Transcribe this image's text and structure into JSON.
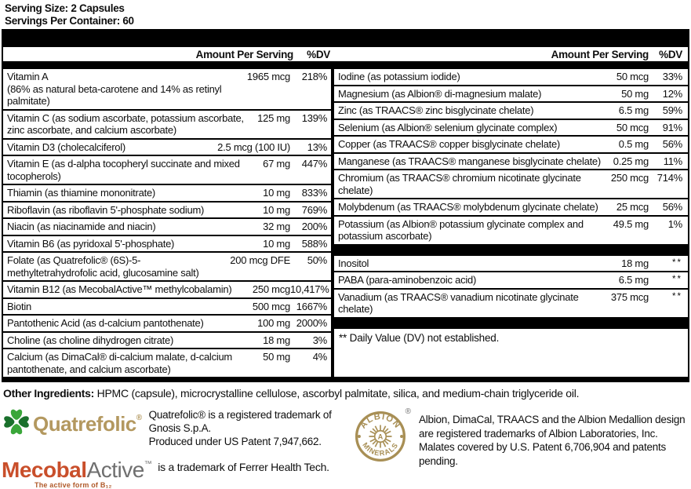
{
  "header": {
    "serving_size": "Serving Size: 2 Capsules",
    "servings_per_container": "Servings Per Container: 60"
  },
  "table": {
    "col_headers": {
      "amount": "Amount Per Serving",
      "dv": "%DV"
    },
    "left_rows": [
      {
        "name": "Vitamin A",
        "sub": "(86% as natural beta-carotene and 14% as retinyl palmitate)",
        "amount": "1965 mcg",
        "dv": "218%"
      },
      {
        "name": "Vitamin C (as sodium ascorbate, potassium ascorbate, zinc ascorbate, and calcium ascorbate)",
        "amount": "125 mg",
        "dv": "139%"
      },
      {
        "name": "Vitamin D3 (cholecalciferol)",
        "amount": "2.5 mcg (100 IU)",
        "dv": "13%"
      },
      {
        "name": "Vitamin E (as d-alpha tocopheryl succinate and mixed tocopherols)",
        "amount": "67 mg",
        "dv": "447%"
      },
      {
        "name": "Thiamin (as thiamine mononitrate)",
        "amount": "10 mg",
        "dv": "833%"
      },
      {
        "name": "Riboflavin (as riboflavin 5'-phosphate sodium)",
        "amount": "10 mg",
        "dv": "769%"
      },
      {
        "name": "Niacin (as niacinamide and niacin)",
        "amount": "32 mg",
        "dv": "200%"
      },
      {
        "name": "Vitamin B6 (as pyridoxal 5'-phosphate)",
        "amount": "10 mg",
        "dv": "588%"
      },
      {
        "name": "Folate (as Quatrefolic® (6S)-5-methyltetrahydrofolic acid, glucosamine salt)",
        "amount": "200 mcg DFE",
        "dv": "50%"
      },
      {
        "name": "Vitamin B12 (as MecobalActive™ methylcobalamin)",
        "amount": "250 mcg",
        "dv": "10,417%"
      },
      {
        "name": "Biotin",
        "amount": "500 mcg",
        "dv": "1667%"
      },
      {
        "name": "Pantothenic Acid (as d-calcium pantothenate)",
        "amount": "100 mg",
        "dv": "2000%"
      },
      {
        "name": "Choline (as choline dihydrogen citrate)",
        "amount": "18 mg",
        "dv": "3%"
      },
      {
        "name": "Calcium (as DimaCal® di-calcium malate, d-calcium pantothenate, and calcium ascorbate)",
        "amount": "50 mg",
        "dv": "4%"
      }
    ],
    "right_rows_top": [
      {
        "name": "Iodine (as potassium iodide)",
        "amount": "50 mcg",
        "dv": "33%"
      },
      {
        "name": "Magnesium (as Albion® di-magnesium malate)",
        "amount": "50 mg",
        "dv": "12%"
      },
      {
        "name": "Zinc (as TRAACS® zinc bisglycinate chelate)",
        "amount": "6.5 mg",
        "dv": "59%"
      },
      {
        "name": "Selenium (as Albion® selenium glycinate complex)",
        "amount": "50 mcg",
        "dv": "91%"
      },
      {
        "name": "Copper (as TRAACS® copper bisglycinate chelate)",
        "amount": "0.5 mg",
        "dv": "56%"
      },
      {
        "name": "Manganese (as TRAACS® manganese bisglycinate chelate)",
        "amount": "0.25 mg",
        "dv": "11%"
      },
      {
        "name": "Chromium (as TRAACS® chromium nicotinate glycinate chelate)",
        "amount": "250 mcg",
        "dv": "714%"
      },
      {
        "name": "Molybdenum (as TRAACS® molybdenum glycinate chelate)",
        "amount": "25 mcg",
        "dv": "56%"
      },
      {
        "name": "Potassium (as Albion® potassium glycinate complex and potassium ascorbate)",
        "amount": "49.5 mg",
        "dv": "1%"
      }
    ],
    "right_rows_mid": [
      {
        "name": "Inositol",
        "amount": "18 mg",
        "dv": "**"
      },
      {
        "name": "PABA (para-aminobenzoic acid)",
        "amount": "6.5 mg",
        "dv": "**"
      },
      {
        "name": "Vanadium (as TRAACS® vanadium nicotinate glycinate chelate)",
        "amount": "375 mcg",
        "dv": "**"
      }
    ],
    "footnote": "** Daily Value (DV) not established."
  },
  "other_ingredients": {
    "label": "Other Ingredients:",
    "text": " HPMC (capsule), microcrystalline cellulose, ascorbyl palmitate, silica, and medium-chain triglyceride oil."
  },
  "trademarks": {
    "quatrefolic": {
      "wordmark": "Quatrefolic",
      "reg": "®",
      "line1": "Quatrefolic® is a registered trademark of Gnosis S.p.A.",
      "line2": "Produced under US Patent 7,947,662.",
      "leaf_dark": "#1a702c",
      "leaf_light": "#3aa63a",
      "wordmark_color": "#b3985f"
    },
    "mecobal": {
      "wordmark_part1": "Mecobal",
      "wordmark_part2": "Active",
      "tm": "™",
      "tagline": "The active form of B₁₂",
      "text": "is a trademark of Ferrer Health Tech.",
      "orange": "#c94f2b",
      "gray": "#6f6f6f"
    },
    "albion": {
      "medallion_top": "ALBION",
      "medallion_bottom": "MINERALS",
      "medallion_center": "A",
      "reg": "®",
      "text": "Albion, DimaCal, TRAACS and the Albion Medallion design are registered trademarks of Albion Laboratories, Inc. Malates covered by U.S. Patent 6,706,904 and patents pending.",
      "gold": "#a88f55"
    }
  },
  "colors": {
    "bar": "#000000",
    "text": "#0e0e0e"
  }
}
